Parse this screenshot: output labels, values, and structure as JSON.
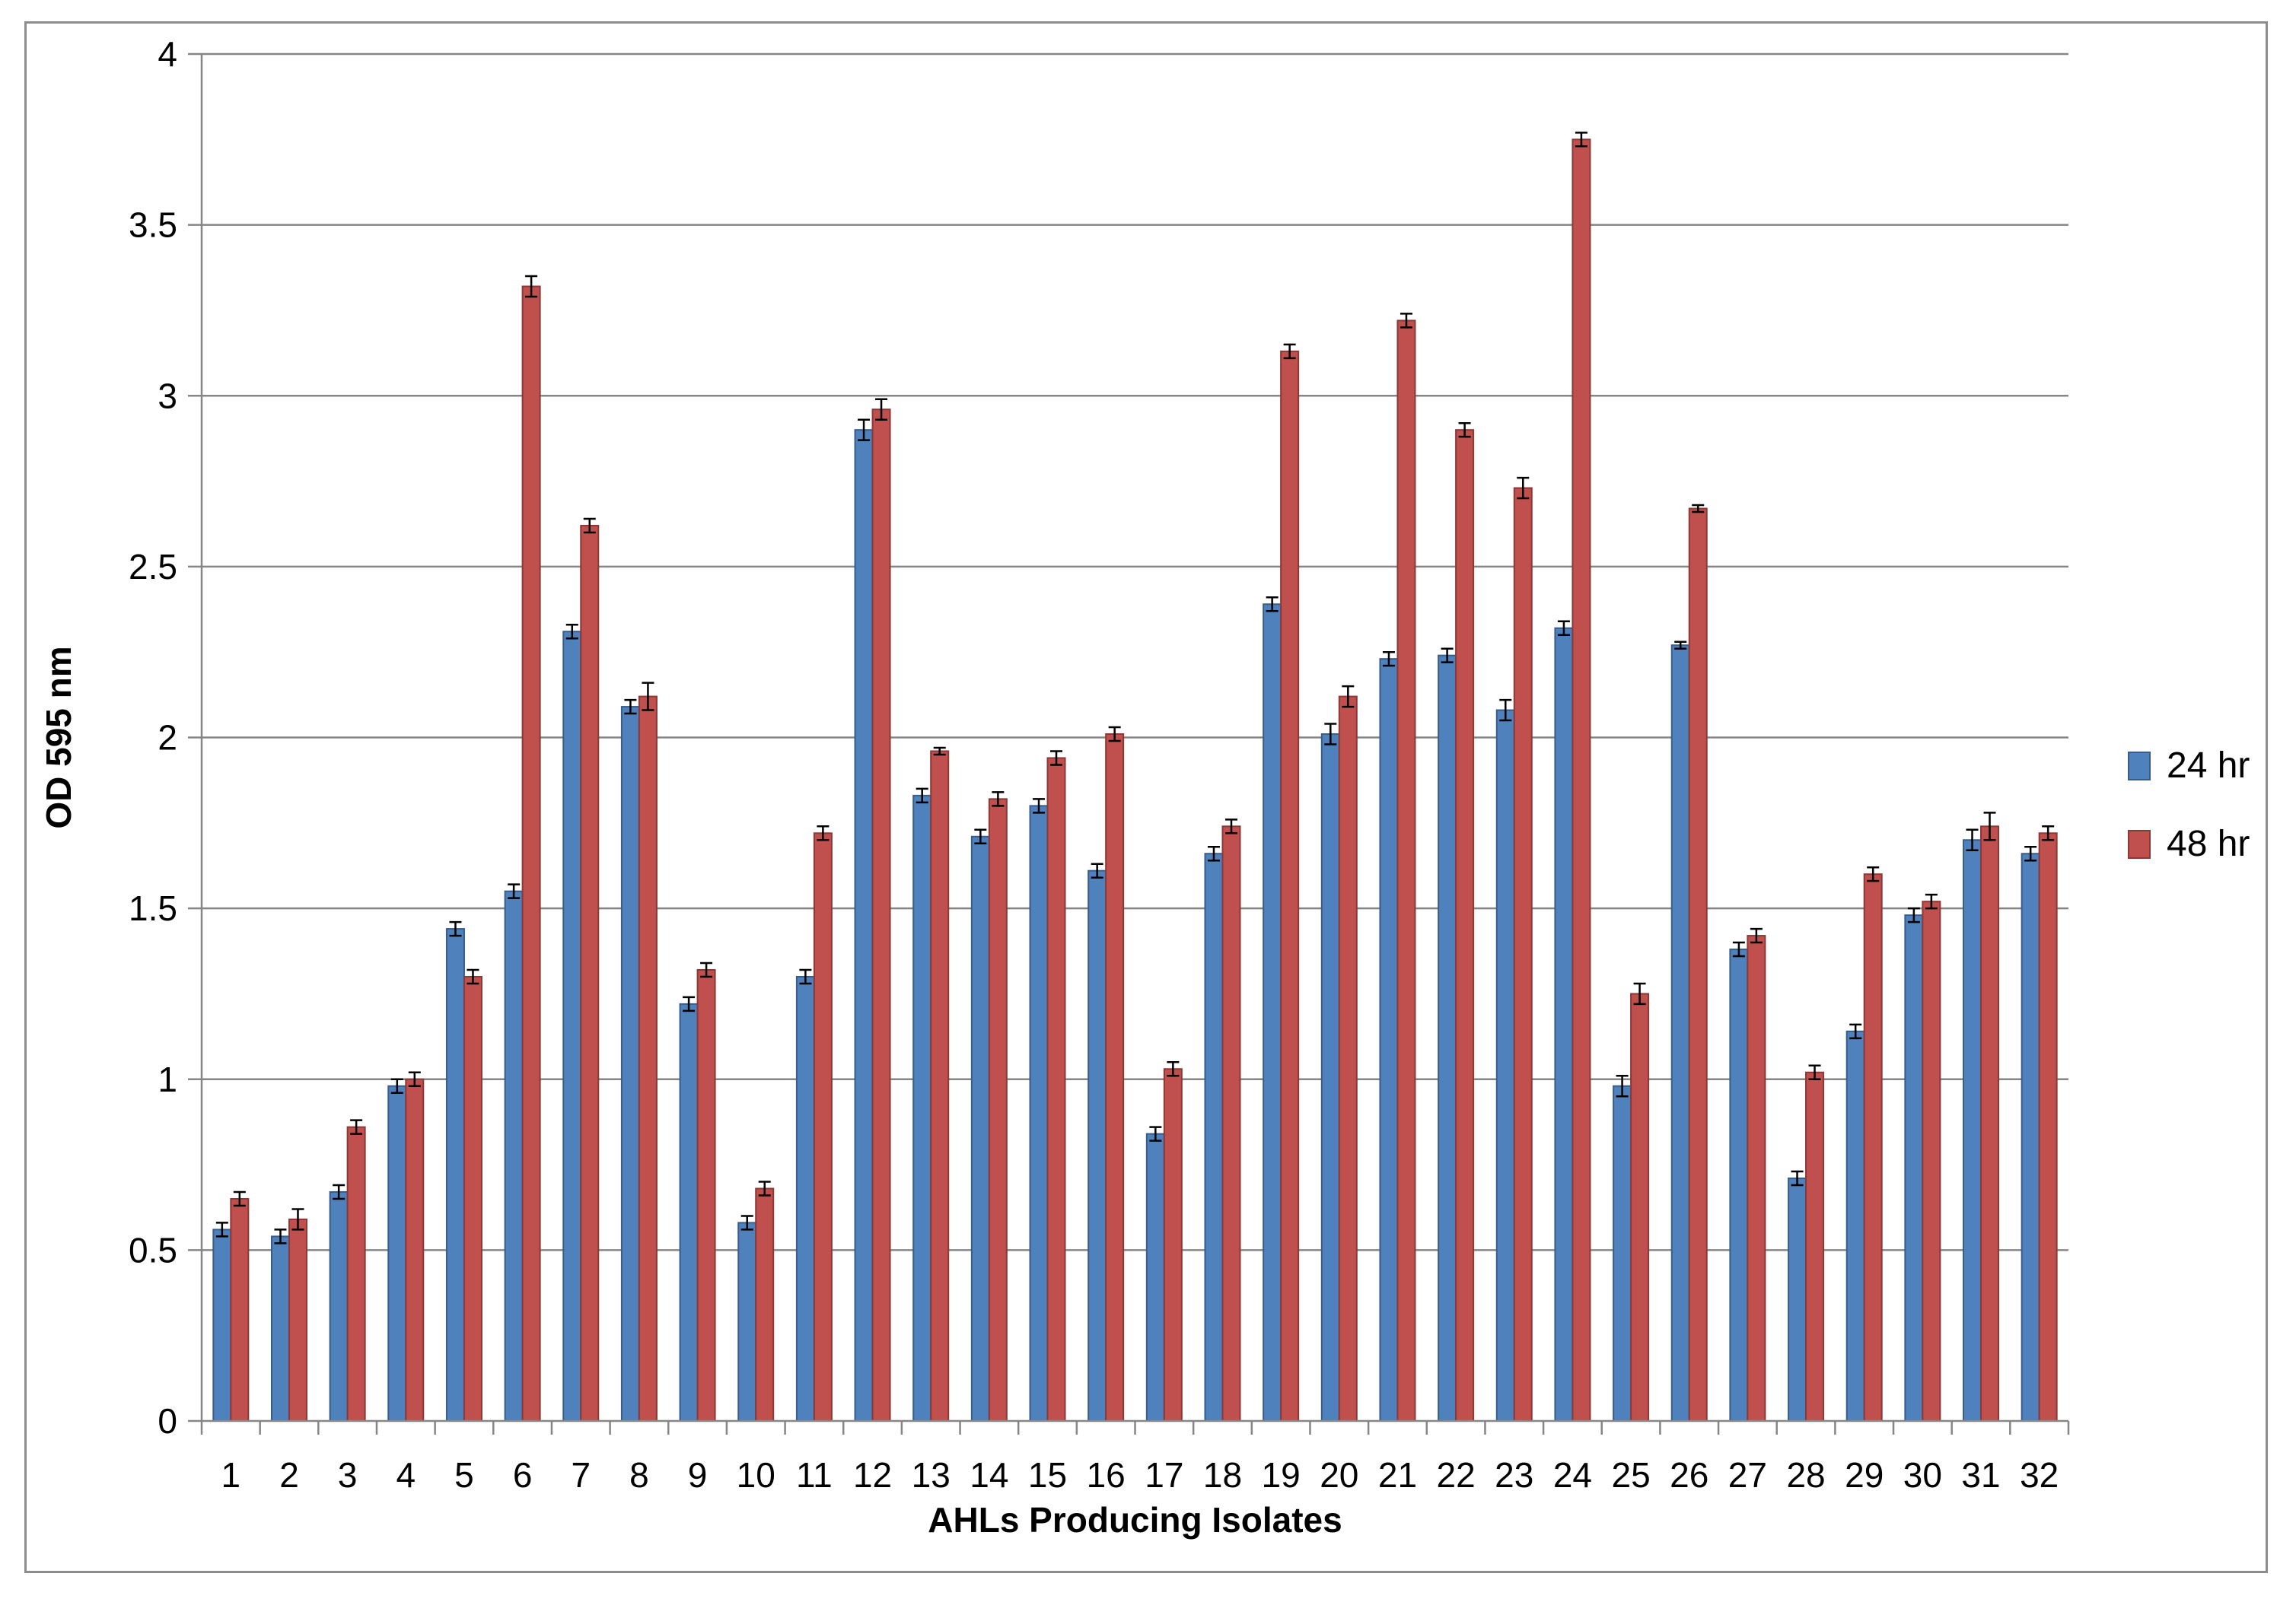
{
  "chart_data": {
    "type": "bar",
    "title": "",
    "xlabel": "AHLs Producing Isolates",
    "ylabel": "OD 595 nm",
    "ylim": [
      0,
      4
    ],
    "yticks": [
      "0",
      "0.5",
      "1",
      "1.5",
      "2",
      "2.5",
      "3",
      "3.5",
      "4"
    ],
    "grid": true,
    "legend_position": "right",
    "categories": [
      "1",
      "2",
      "3",
      "4",
      "5",
      "6",
      "7",
      "8",
      "9",
      "10",
      "11",
      "12",
      "13",
      "14",
      "15",
      "16",
      "17",
      "18",
      "19",
      "20",
      "21",
      "22",
      "23",
      "24",
      "25",
      "26",
      "27",
      "28",
      "29",
      "30",
      "31",
      "32"
    ],
    "series": [
      {
        "name": "24 hr",
        "color": "#4f81bd",
        "border": "#385d8a",
        "values": [
          0.56,
          0.54,
          0.67,
          0.98,
          1.44,
          1.55,
          2.31,
          2.09,
          1.22,
          0.58,
          1.3,
          2.9,
          1.83,
          1.71,
          1.8,
          1.61,
          0.84,
          1.66,
          2.39,
          2.01,
          2.23,
          2.24,
          2.08,
          2.32,
          0.98,
          2.27,
          1.38,
          0.71,
          1.14,
          1.48,
          1.7,
          1.66
        ],
        "errors": [
          0.02,
          0.02,
          0.02,
          0.02,
          0.02,
          0.02,
          0.02,
          0.02,
          0.02,
          0.02,
          0.02,
          0.03,
          0.02,
          0.02,
          0.02,
          0.02,
          0.02,
          0.02,
          0.02,
          0.03,
          0.02,
          0.02,
          0.03,
          0.02,
          0.03,
          0.01,
          0.02,
          0.02,
          0.02,
          0.02,
          0.03,
          0.02
        ]
      },
      {
        "name": "48 hr",
        "color": "#c0504d",
        "border": "#8c3836",
        "values": [
          0.65,
          0.59,
          0.86,
          1.0,
          1.3,
          3.32,
          2.62,
          2.12,
          1.32,
          0.68,
          1.72,
          2.96,
          1.96,
          1.82,
          1.94,
          2.01,
          1.03,
          1.74,
          3.13,
          2.12,
          3.22,
          2.9,
          2.73,
          3.75,
          1.25,
          2.67,
          1.42,
          1.02,
          1.6,
          1.52,
          1.74,
          1.72
        ],
        "errors": [
          0.02,
          0.03,
          0.02,
          0.02,
          0.02,
          0.03,
          0.02,
          0.04,
          0.02,
          0.02,
          0.02,
          0.03,
          0.01,
          0.02,
          0.02,
          0.02,
          0.02,
          0.02,
          0.02,
          0.03,
          0.02,
          0.02,
          0.03,
          0.02,
          0.03,
          0.01,
          0.02,
          0.02,
          0.02,
          0.02,
          0.04,
          0.02
        ]
      }
    ]
  }
}
